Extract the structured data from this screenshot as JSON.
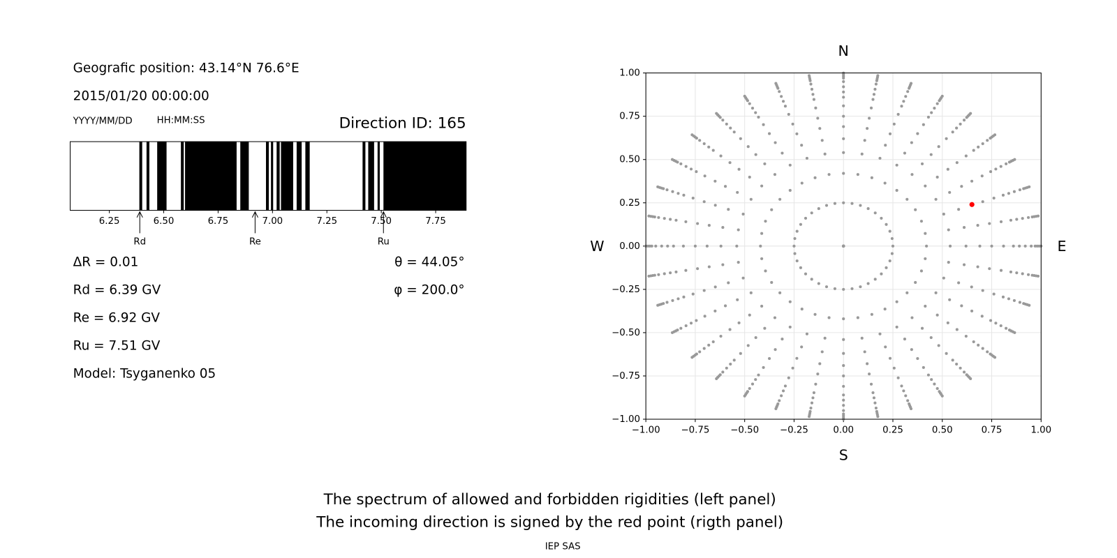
{
  "info": {
    "position": "Geografic position: 43.14°N 76.6°E",
    "datetime": "2015/01/20 00:00:00",
    "date_format": "YYYY/MM/DD",
    "time_format": "HH:MM:SS",
    "direction": "Direction ID: 165",
    "delta_r": "ΔR = 0.01",
    "theta": "θ = 44.05°",
    "phi": "φ = 200.0°",
    "rd": "Rd = 6.39 GV",
    "re": "Re = 6.92 GV",
    "ru": "Ru = 7.51 GV",
    "model": "Model: Tsyganenko 05"
  },
  "caption": [
    "The spectrum of allowed and forbidden rigidities (left panel)",
    "The incoming direction is signed by the red point (rigth panel)"
  ],
  "credit": "IEP SAS",
  "chart_data": [
    {
      "type": "spectrum",
      "color": "#000000",
      "xlim": [
        6.07,
        7.89
      ],
      "xticks": [
        6.25,
        {
          "value": 6.5,
          "label": "6.50"
        },
        6.75,
        {
          "value": 7,
          "label": "7.00"
        },
        7.25,
        {
          "value": 7.5,
          "label": "7.50"
        },
        7.75
      ],
      "starts": [
        6.388,
        6.421,
        6.47,
        6.579,
        6.598,
        6.852,
        6.97,
        6.993,
        7.019,
        7.039,
        7.111,
        7.151,
        7.414,
        7.44,
        7.483,
        7.51
      ],
      "ends": [
        6.401,
        6.434,
        6.513,
        6.592,
        6.835,
        6.891,
        6.983,
        7.003,
        7.033,
        7.095,
        7.134,
        7.171,
        7.427,
        7.467,
        7.493,
        7.89
      ],
      "markers": {
        "labels": [
          "Rd",
          "Re",
          "Ru"
        ],
        "values": [
          6.39,
          6.92,
          7.51
        ]
      }
    },
    {
      "type": "scatter",
      "xlim": [
        -1,
        1
      ],
      "ylim": [
        -1,
        1
      ],
      "grid": true,
      "xticks": [
        {
          "value": -1,
          "label": "−1.00"
        },
        {
          "value": -0.75,
          "label": "−0.75"
        },
        {
          "value": -0.5,
          "label": "−0.50"
        },
        {
          "value": -0.25,
          "label": "−0.25"
        },
        {
          "value": 0,
          "label": "0.00"
        },
        {
          "value": 0.25,
          "label": "0.25"
        },
        {
          "value": 0.5,
          "label": "0.50"
        },
        {
          "value": 0.75,
          "label": "0.75"
        },
        {
          "value": 1,
          "label": "1.00"
        }
      ],
      "yticks": [
        {
          "value": -1,
          "label": "−1.00"
        },
        {
          "value": -0.75,
          "label": "−0.75"
        },
        {
          "value": -0.5,
          "label": "−0.50"
        },
        {
          "value": -0.25,
          "label": "−0.25"
        },
        {
          "value": 0,
          "label": "0.00"
        },
        {
          "value": 0.25,
          "label": "0.25"
        },
        {
          "value": 0.5,
          "label": "0.50"
        },
        {
          "value": 0.75,
          "label": "0.75"
        },
        {
          "value": 1,
          "label": "1.00"
        }
      ],
      "north": "N",
      "south": "S",
      "west": "W",
      "east": "E",
      "points": {
        "color": "#999999",
        "radii": [
          0,
          0.25,
          0.42,
          0.54,
          0.62,
          0.69,
          0.75,
          0.81,
          0.86,
          0.89,
          0.92,
          0.95,
          0.97,
          0.98,
          0.99,
          1.0
        ],
        "azimuths": [
          0,
          10,
          20,
          30,
          40,
          50,
          60,
          70,
          80,
          90,
          100,
          110,
          120,
          130,
          140,
          150,
          160,
          170,
          180,
          190,
          200,
          210,
          220,
          230,
          240,
          250,
          260,
          270,
          280,
          290,
          300,
          310,
          320,
          330,
          340,
          350
        ]
      },
      "highlight": {
        "color": "#ff0000",
        "x": 0.65,
        "y": 0.24
      }
    }
  ]
}
